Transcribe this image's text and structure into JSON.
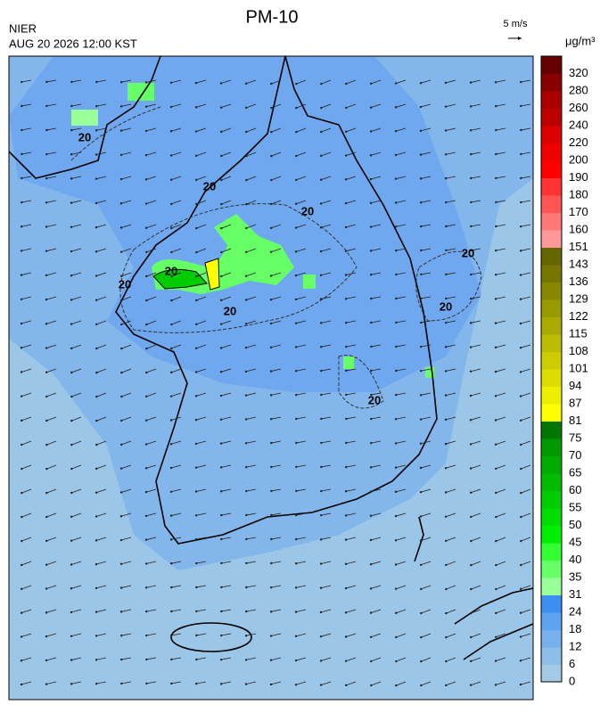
{
  "header": {
    "title": "PM-10",
    "agency": "NIER",
    "datetime": "AUG 20 2026 12:00 KST"
  },
  "wind_legend": {
    "label": "5 m/s"
  },
  "colorbar": {
    "unit": "μg/m³",
    "levels": [
      0,
      6,
      12,
      18,
      24,
      31,
      35,
      40,
      45,
      50,
      55,
      60,
      65,
      70,
      75,
      81,
      87,
      94,
      101,
      108,
      115,
      122,
      129,
      136,
      143,
      151,
      160,
      170,
      180,
      190,
      200,
      220,
      240,
      260,
      280,
      320
    ],
    "colors": [
      "#a3cbe6",
      "#8dbde9",
      "#77b0ec",
      "#5ea3ef",
      "#3d8ff2",
      "#99ff99",
      "#66ff66",
      "#33ff33",
      "#00ee00",
      "#00dd00",
      "#00cc00",
      "#00bb00",
      "#00aa00",
      "#009900",
      "#007700",
      "#ffff00",
      "#eeee00",
      "#dddd00",
      "#cccc00",
      "#bbbb00",
      "#aaaa00",
      "#999900",
      "#888800",
      "#777700",
      "#666600",
      "#ff9999",
      "#ff7777",
      "#ff5555",
      "#ff3333",
      "#ff0000",
      "#ee0000",
      "#dd0000",
      "#bb0000",
      "#aa0000",
      "#880000",
      "#660000"
    ]
  },
  "contour_labels": [
    "20",
    "20",
    "20",
    "20",
    "20",
    "20",
    "20",
    "20",
    "20"
  ]
}
